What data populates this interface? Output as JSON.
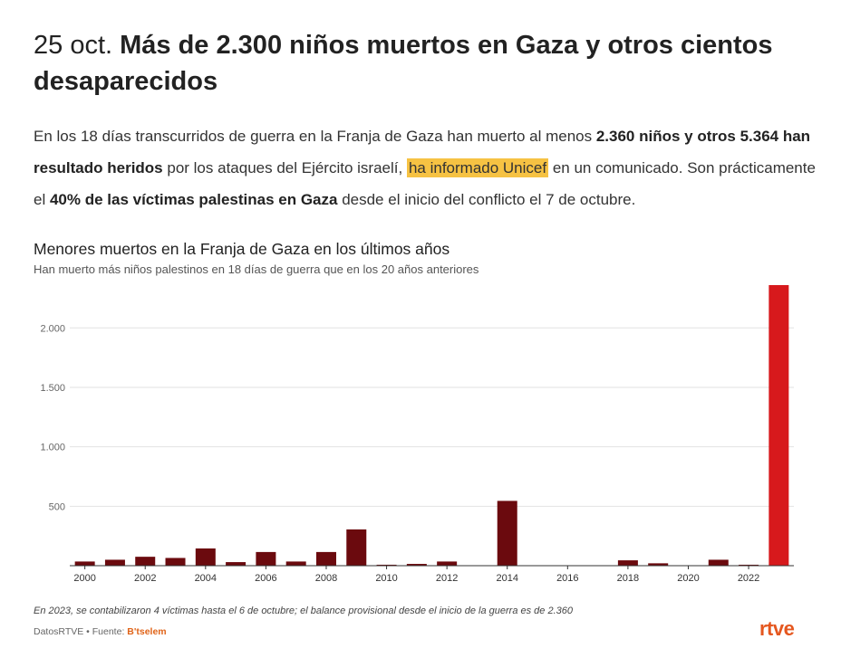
{
  "header": {
    "date": "25 oct.",
    "title": "Más de 2.300 niños muertos en Gaza y otros cientos desaparecidos"
  },
  "lead": {
    "p1": "En los 18 días transcurridos de guerra en la Franja de Gaza han muerto al menos ",
    "b1": "2.360 niños y otros 5.364 han resultado heridos",
    "p2": " por los ataques del Ejército israelí, ",
    "highlight": "ha informado Unicef",
    "p3": " en un comunicado. Son prácticamente el ",
    "b2": "40% de las víctimas palestinas en Gaza",
    "p4": " desde el inicio del conflicto el 7 de octubre."
  },
  "chart_data": {
    "type": "bar",
    "title": "Menores muertos en la Franja de Gaza en los últimos años",
    "subtitle": "Han muerto más niños palestinos en 18 días de guerra que en los 20 años anteriores",
    "xlabel": "",
    "ylabel": "",
    "ylim": [
      0,
      2360
    ],
    "yticks": [
      500,
      1000,
      1500,
      2000
    ],
    "ytick_labels": [
      "500",
      "1.000",
      "1.500",
      "2.000"
    ],
    "xtick_labels": [
      "2000",
      "2002",
      "2004",
      "2006",
      "2008",
      "2010",
      "2012",
      "2014",
      "2016",
      "2018",
      "2020",
      "2022"
    ],
    "categories": [
      "2000",
      "2001",
      "2002",
      "2003",
      "2004",
      "2005",
      "2006",
      "2007",
      "2008",
      "2009",
      "2010",
      "2011",
      "2012",
      "2013",
      "2014",
      "2015",
      "2016",
      "2017",
      "2018",
      "2019",
      "2020",
      "2021",
      "2022",
      "2023"
    ],
    "values": [
      35,
      50,
      75,
      65,
      145,
      30,
      115,
      35,
      115,
      305,
      8,
      15,
      35,
      3,
      545,
      2,
      2,
      2,
      45,
      20,
      2,
      50,
      8,
      2360
    ],
    "colors": {
      "default": "#6b0a0e",
      "highlight": "#d7191c"
    },
    "highlight_category": "2023",
    "grid": true
  },
  "footer": {
    "note": "En 2023, se contabilizaron 4 víctimas hasta el 6 de octubre; el balance provisional desde el inicio de la guerra es de 2.360",
    "credit": "DatosRTVE • Fuente: ",
    "source": "B'tselem",
    "logo": "rtve"
  }
}
